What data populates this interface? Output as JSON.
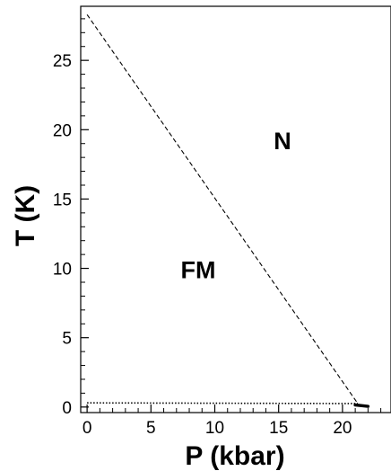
{
  "chart_data": {
    "type": "line",
    "xlabel": "P (kbar)",
    "ylabel": "T (K)",
    "xlim": [
      -0.5,
      23.8
    ],
    "ylim": [
      -0.4,
      28.9
    ],
    "x_ticks": [
      0,
      5,
      10,
      15,
      20
    ],
    "y_ticks": [
      0,
      5,
      10,
      15,
      20,
      25
    ],
    "x_minor_step": 1,
    "y_minor_step": 1,
    "grid": false,
    "series": [
      {
        "style": "dashed",
        "x": [
          0,
          21.2
        ],
        "y": [
          28.3,
          0.25
        ]
      },
      {
        "style": "dotted",
        "x": [
          0,
          21.2
        ],
        "y": [
          0.3,
          0.25
        ]
      },
      {
        "style": "solid-thick",
        "x": [
          21.0,
          22.0
        ],
        "y": [
          0.15,
          0.05
        ]
      }
    ],
    "annotations": [
      {
        "text": "N",
        "x": 15.3,
        "y": 18.6
      },
      {
        "text": "FM",
        "x": 8.7,
        "y": 9.3
      }
    ]
  }
}
